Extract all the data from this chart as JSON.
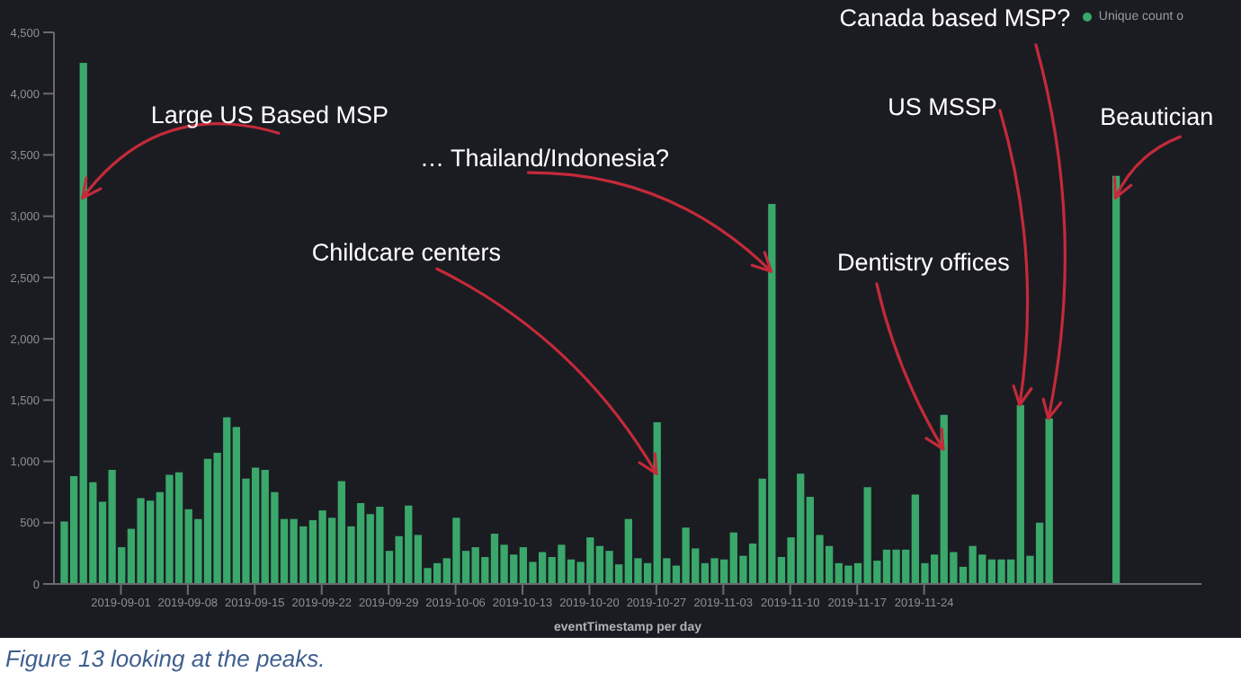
{
  "chart_data": {
    "type": "bar",
    "x": [
      "2019-08-26",
      "2019-08-27",
      "2019-08-28",
      "2019-08-29",
      "2019-08-30",
      "2019-08-31",
      "2019-09-01",
      "2019-09-02",
      "2019-09-03",
      "2019-09-04",
      "2019-09-05",
      "2019-09-06",
      "2019-09-07",
      "2019-09-08",
      "2019-09-09",
      "2019-09-10",
      "2019-09-11",
      "2019-09-12",
      "2019-09-13",
      "2019-09-14",
      "2019-09-15",
      "2019-09-16",
      "2019-09-17",
      "2019-09-18",
      "2019-09-19",
      "2019-09-20",
      "2019-09-21",
      "2019-09-22",
      "2019-09-23",
      "2019-09-24",
      "2019-09-25",
      "2019-09-26",
      "2019-09-27",
      "2019-09-28",
      "2019-09-29",
      "2019-09-30",
      "2019-10-01",
      "2019-10-02",
      "2019-10-03",
      "2019-10-04",
      "2019-10-05",
      "2019-10-06",
      "2019-10-07",
      "2019-10-08",
      "2019-10-09",
      "2019-10-10",
      "2019-10-11",
      "2019-10-12",
      "2019-10-13",
      "2019-10-14",
      "2019-10-15",
      "2019-10-16",
      "2019-10-17",
      "2019-10-18",
      "2019-10-19",
      "2019-10-20",
      "2019-10-21",
      "2019-10-22",
      "2019-10-23",
      "2019-10-24",
      "2019-10-25",
      "2019-10-26",
      "2019-10-27",
      "2019-10-28",
      "2019-10-29",
      "2019-10-30",
      "2019-10-31",
      "2019-11-01",
      "2019-11-02",
      "2019-11-03",
      "2019-11-04",
      "2019-11-05",
      "2019-11-06",
      "2019-11-07",
      "2019-11-08",
      "2019-11-09",
      "2019-11-10",
      "2019-11-11",
      "2019-11-12",
      "2019-11-13",
      "2019-11-14",
      "2019-11-15",
      "2019-11-16",
      "2019-11-17",
      "2019-11-18",
      "2019-11-19",
      "2019-11-20",
      "2019-11-21",
      "2019-11-22",
      "2019-11-23",
      "2019-11-24",
      "2019-11-25",
      "2019-11-26",
      "2019-11-27",
      "2019-11-28",
      "2019-11-29",
      "2019-11-30",
      "2019-12-01",
      "2019-12-02",
      "2019-12-03",
      "2019-12-04",
      "2019-12-05",
      "2019-12-06",
      "2019-12-07",
      "2019-12-08",
      "2019-12-09",
      "2019-12-10",
      "2019-12-11",
      "2019-12-12",
      "2019-12-13",
      "2019-12-14"
    ],
    "series": [
      {
        "name": "Unique count o",
        "color": "#3aa86b",
        "values": [
          510,
          880,
          4250,
          830,
          670,
          930,
          300,
          450,
          700,
          680,
          750,
          890,
          910,
          610,
          530,
          1020,
          1070,
          1360,
          1280,
          860,
          950,
          930,
          750,
          530,
          530,
          470,
          520,
          600,
          540,
          840,
          470,
          660,
          570,
          630,
          270,
          390,
          640,
          400,
          130,
          170,
          210,
          540,
          270,
          300,
          220,
          410,
          320,
          240,
          300,
          180,
          260,
          220,
          320,
          200,
          180,
          380,
          310,
          270,
          160,
          530,
          210,
          170,
          1320,
          210,
          150,
          460,
          290,
          170,
          210,
          200,
          420,
          230,
          330,
          860,
          3100,
          220,
          380,
          900,
          710,
          400,
          310,
          170,
          150,
          170,
          790,
          190,
          280,
          280,
          280,
          730,
          170,
          240,
          1380,
          260,
          140,
          310,
          240,
          200,
          200,
          200,
          1460,
          230,
          500,
          1350,
          null,
          null,
          null,
          null,
          null,
          null,
          3330
        ]
      }
    ],
    "xlabel": "eventTimestamp per day",
    "xlim": [
      "2019-08-25",
      "2019-12-23"
    ],
    "xticks": [
      "2019-09-01",
      "2019-09-08",
      "2019-09-15",
      "2019-09-22",
      "2019-09-29",
      "2019-10-06",
      "2019-10-13",
      "2019-10-20",
      "2019-10-27",
      "2019-11-03",
      "2019-11-10",
      "2019-11-17",
      "2019-11-24"
    ],
    "ylim": [
      0,
      4500
    ],
    "yticks": [
      0,
      500,
      {
        "value": 1000,
        "label": "1,000"
      },
      {
        "value": 1500,
        "label": "1,500"
      },
      {
        "value": 2000,
        "label": "2,000"
      },
      {
        "value": 2500,
        "label": "2,500"
      },
      {
        "value": 3000,
        "label": "3,000"
      },
      {
        "value": 3500,
        "label": "3,500"
      },
      {
        "value": 4000,
        "label": "4,000"
      },
      {
        "value": 4500,
        "label": "4,500"
      }
    ],
    "legend": "top right",
    "annotations": [
      {
        "text": "Large US Based MSP",
        "x": "2019-08-28",
        "y": 3150
      },
      {
        "text": "… Thailand/Indonesia?",
        "x": "2019-11-08",
        "y": 2550
      },
      {
        "text": "Childcare centers",
        "x": "2019-10-27",
        "y": 900
      },
      {
        "text": "Dentistry offices",
        "x": "2019-11-26",
        "y": 1100
      },
      {
        "text": "US MSSP",
        "x": "2019-12-04",
        "y": 1460
      },
      {
        "text": "Canada based MSP?",
        "x": "2019-12-07",
        "y": 1350
      },
      {
        "text": "Beautician",
        "x": "2019-12-14",
        "y": 3150
      },
      "Figure 13 looking at the peaks."
    ]
  }
}
